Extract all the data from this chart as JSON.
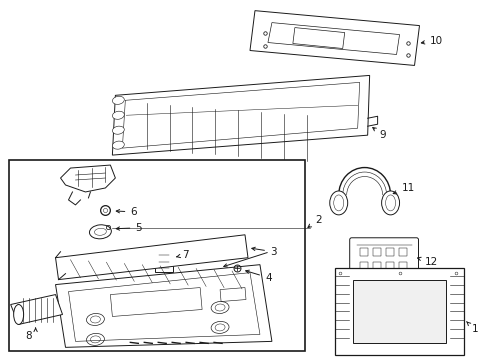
{
  "bg_color": "#ffffff",
  "line_color": "#1a1a1a",
  "text_color": "#1a1a1a",
  "fig_width": 4.89,
  "fig_height": 3.6,
  "dpi": 100,
  "ann_fs": 7.5,
  "lw": 0.7
}
